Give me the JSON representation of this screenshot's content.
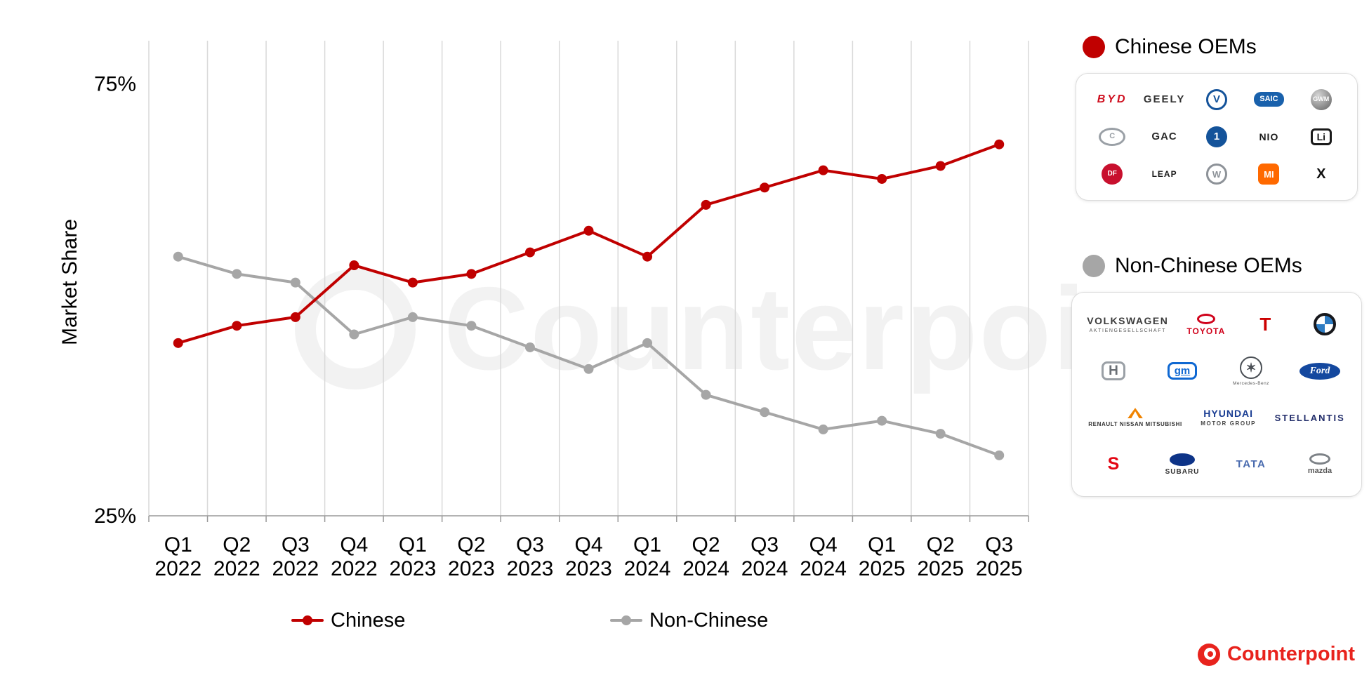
{
  "chart_data": {
    "type": "line",
    "title": "",
    "xlabel": "",
    "ylabel": "Market Share",
    "ylim": [
      25,
      80
    ],
    "yticks": [
      {
        "value": 75,
        "label": "75%"
      },
      {
        "value": 25,
        "label": "25%"
      }
    ],
    "grid": "vertical",
    "legend_position": "bottom",
    "unit": "%",
    "categories": [
      "Q1 2022",
      "Q2 2022",
      "Q3 2022",
      "Q4 2022",
      "Q1 2023",
      "Q2 2023",
      "Q3 2023",
      "Q4 2023",
      "Q1 2024",
      "Q2 2024",
      "Q3 2024",
      "Q4 2024",
      "Q1 2025",
      "Q2 2025",
      "Q3 2025"
    ],
    "series": [
      {
        "name": "Chinese",
        "color": "#c00000",
        "values": [
          45,
          47,
          48,
          54,
          52,
          53,
          55.5,
          58,
          55,
          61,
          63,
          65,
          64,
          65.5,
          68
        ]
      },
      {
        "name": "Non-Chinese",
        "color": "#a6a6a6",
        "values": [
          55,
          53,
          52,
          46,
          48,
          47,
          44.5,
          42,
          45,
          39,
          37,
          35,
          36,
          34.5,
          32
        ]
      }
    ]
  },
  "watermark": {
    "text": "Counterpoint"
  },
  "panels": {
    "chinese_oems": {
      "title": "Chinese OEMs",
      "dot_color": "#c00000",
      "logos": [
        {
          "id": "byd",
          "label": "BYD"
        },
        {
          "id": "geely",
          "label": "GEELY"
        },
        {
          "id": "changan",
          "label": "V"
        },
        {
          "id": "saic",
          "label": "SAIC"
        },
        {
          "id": "great-wall",
          "label": "GWM"
        },
        {
          "id": "chery",
          "label": "C"
        },
        {
          "id": "gac",
          "label": "GAC"
        },
        {
          "id": "faw",
          "label": "1"
        },
        {
          "id": "nio",
          "label": "NIO"
        },
        {
          "id": "li-auto",
          "label": "Li"
        },
        {
          "id": "dongfeng",
          "label": "DF"
        },
        {
          "id": "leapmotor",
          "label": "LEAP"
        },
        {
          "id": "wuling",
          "label": "W"
        },
        {
          "id": "xiaomi",
          "label": "MI"
        },
        {
          "id": "xpeng",
          "label": "X"
        }
      ]
    },
    "non_chinese_oems": {
      "title": "Non-Chinese OEMs",
      "dot_color": "#a6a6a6",
      "rows": [
        [
          {
            "id": "volkswagen",
            "label": "VOLKSWAGEN",
            "sub": "AKTIENGESELLSCHAFT"
          },
          {
            "id": "toyota",
            "label": "TOYOTA"
          },
          {
            "id": "tesla",
            "label": "T"
          },
          {
            "id": "bmw"
          }
        ],
        [
          {
            "id": "honda",
            "label": "H"
          },
          {
            "id": "gm",
            "label": "gm"
          },
          {
            "id": "mercedes",
            "label": "✶",
            "sub": "Mercedes-Benz"
          },
          {
            "id": "ford",
            "label": "Ford"
          }
        ],
        [
          {
            "id": "renault-nissan-mitsubishi",
            "sub": "RENAULT NISSAN MITSUBISHI"
          },
          {
            "id": "hyundai",
            "label": "HYUNDAI",
            "sub": "MOTOR GROUP"
          },
          {
            "id": "stellantis",
            "label": "STELLANTIS"
          }
        ],
        [
          {
            "id": "suzuki",
            "label": "S"
          },
          {
            "id": "subaru",
            "label": "SUBARU"
          },
          {
            "id": "tata",
            "label": "TATA"
          },
          {
            "id": "mazda",
            "label": "mazda"
          }
        ]
      ]
    }
  },
  "branding": {
    "label": "Counterpoint",
    "color": "#e8231d"
  }
}
